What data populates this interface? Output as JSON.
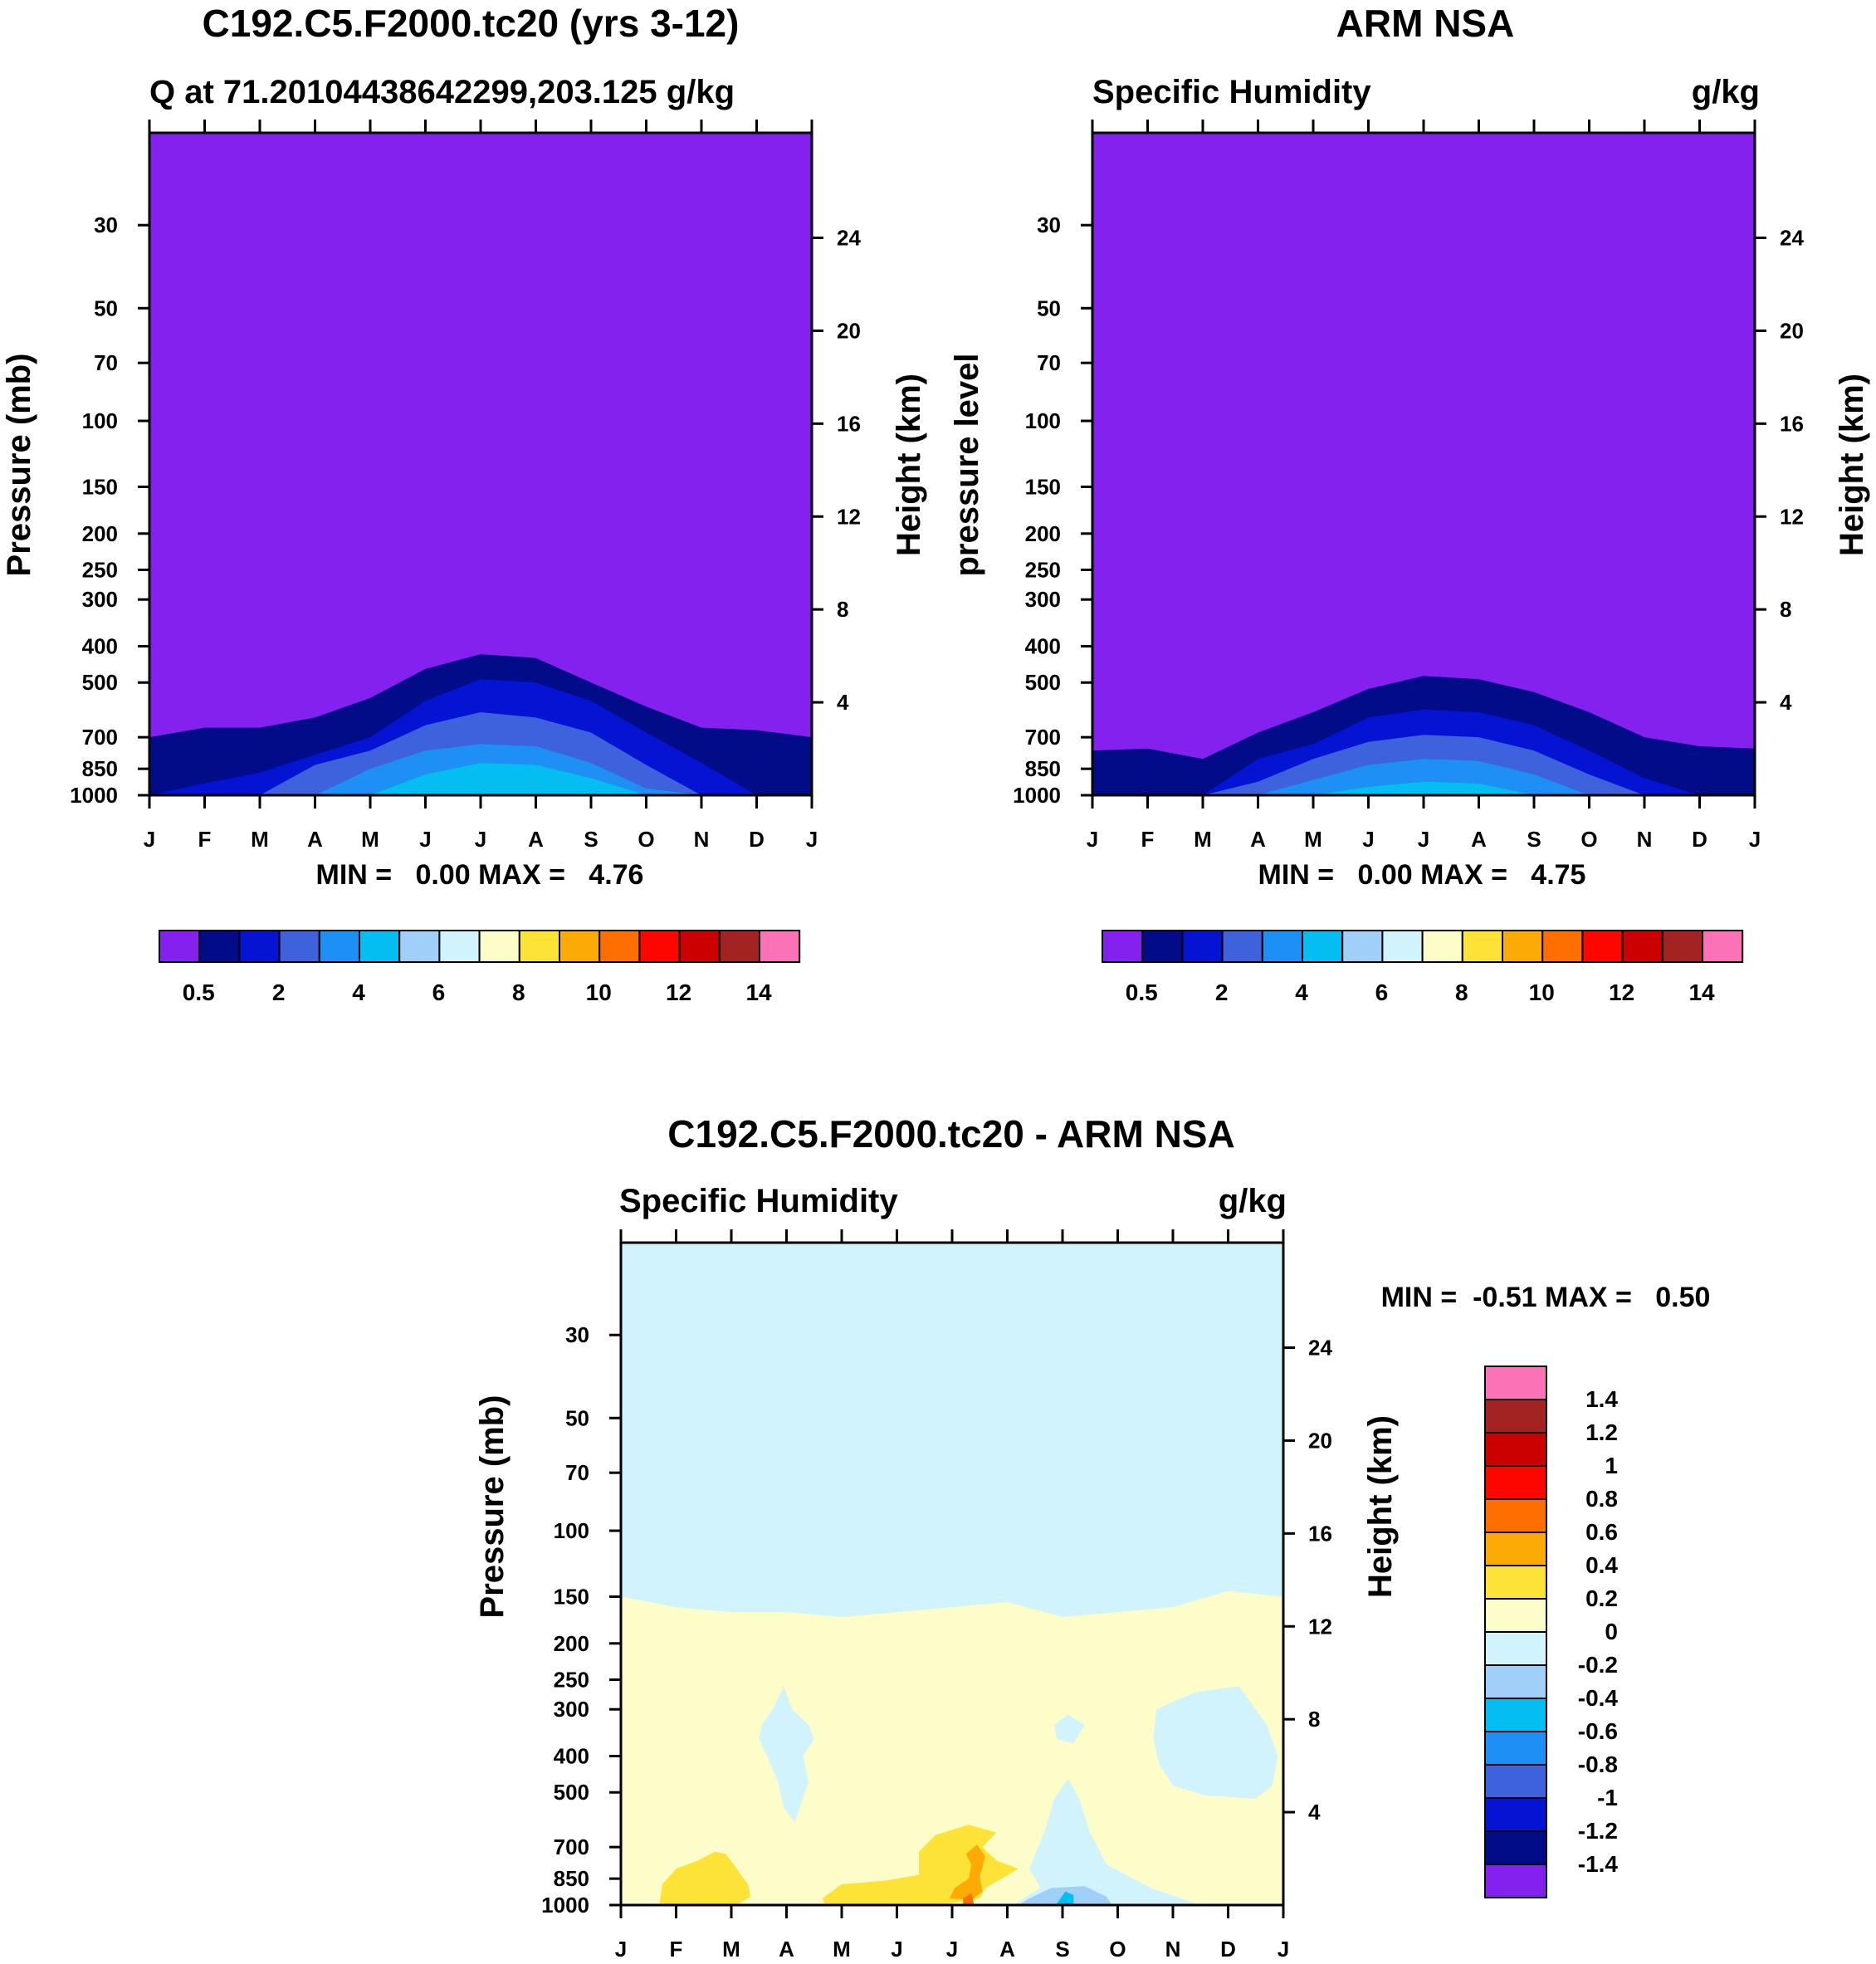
{
  "colors": {
    "absolute_levels": [
      "#8521ee",
      "#020b88",
      "#0414d2",
      "#3d62dc",
      "#1e8ff5",
      "#04bdf1",
      "#a0cffa",
      "#d1f3fd",
      "#fdfdc9",
      "#fde237",
      "#fcaa05",
      "#fe6e00",
      "#fd0600",
      "#cb0000",
      "#a32322",
      "#fb72b7"
    ],
    "difference_levels": [
      "#8521ee",
      "#020b88",
      "#0414d2",
      "#3d62dc",
      "#1e8ff5",
      "#04bdf1",
      "#a0cffa",
      "#d1f3fd",
      "#fdfdc9",
      "#fde237",
      "#fcaa05",
      "#fe6e00",
      "#fd0600",
      "#cb0000",
      "#a32322",
      "#fb72b7"
    ]
  },
  "chart_data": [
    {
      "id": "model",
      "type": "contour",
      "title": "C192.C5.F2000.tc20 (yrs 3-12)",
      "subtitle_left": "Q at 71.20104438642299,203.125 g/kg",
      "subtitle_right": "",
      "ylabel_left": "Pressure (mb)",
      "ylabel_right": "Height (km)",
      "stats": "MIN =   0.00 MAX =   4.76",
      "months": [
        "J",
        "F",
        "M",
        "A",
        "M",
        "J",
        "J",
        "A",
        "S",
        "O",
        "N",
        "D",
        "J"
      ],
      "pressure_ticks": [
        30,
        50,
        70,
        100,
        150,
        200,
        250,
        300,
        400,
        500,
        700,
        850,
        1000
      ],
      "height_ticks": [
        24,
        20,
        16,
        12,
        8,
        4
      ],
      "colorbar_labels": [
        "0.5",
        "2",
        "4",
        "6",
        "8",
        "10",
        "12",
        "14"
      ],
      "contour_top_mb": {
        "x": [
          0,
          1,
          2,
          3,
          4,
          5,
          6,
          7,
          8,
          9,
          10,
          11,
          12
        ],
        "0.5": [
          700,
          660,
          660,
          620,
          550,
          460,
          420,
          430,
          500,
          580,
          660,
          670,
          700
        ],
        "1": [
          1000,
          930,
          870,
          780,
          700,
          560,
          490,
          500,
          560,
          680,
          820,
          1000,
          1000
        ],
        "2": [
          1000,
          1000,
          1000,
          830,
          760,
          650,
          600,
          620,
          680,
          830,
          1000,
          1000,
          1000
        ],
        "3": [
          1000,
          1000,
          1000,
          1000,
          850,
          760,
          730,
          740,
          820,
          960,
          1000,
          1000,
          1000
        ],
        "4": [
          1000,
          1000,
          1000,
          1000,
          1000,
          880,
          820,
          830,
          900,
          1000,
          1000,
          1000,
          1000
        ]
      }
    },
    {
      "id": "obs",
      "type": "contour",
      "title": "ARM NSA",
      "subtitle_left": "Specific Humidity",
      "subtitle_right": "g/kg",
      "ylabel_left": "pressure level",
      "ylabel_right": "Height (km)",
      "stats": "MIN =   0.00 MAX =   4.75",
      "months": [
        "J",
        "F",
        "M",
        "A",
        "M",
        "J",
        "J",
        "A",
        "S",
        "O",
        "N",
        "D",
        "J"
      ],
      "pressure_ticks": [
        30,
        50,
        70,
        100,
        150,
        200,
        250,
        300,
        400,
        500,
        700,
        850,
        1000
      ],
      "height_ticks": [
        24,
        20,
        16,
        12,
        8,
        4
      ],
      "colorbar_labels": [
        "0.5",
        "2",
        "4",
        "6",
        "8",
        "10",
        "12",
        "14"
      ],
      "contour_top_mb": {
        "x": [
          0,
          1,
          2,
          3,
          4,
          5,
          6,
          7,
          8,
          9,
          10,
          11,
          12
        ],
        "0.5": [
          760,
          750,
          800,
          680,
          600,
          520,
          480,
          490,
          530,
          600,
          700,
          740,
          750
        ],
        "1": [
          1000,
          1000,
          1000,
          800,
          730,
          620,
          590,
          600,
          650,
          760,
          900,
          1000,
          1000
        ],
        "2": [
          1000,
          1000,
          1000,
          920,
          800,
          720,
          690,
          700,
          760,
          880,
          1000,
          1000,
          1000
        ],
        "3": [
          1000,
          1000,
          1000,
          1000,
          910,
          830,
          800,
          810,
          880,
          1000,
          1000,
          1000,
          1000
        ],
        "4": [
          1000,
          1000,
          1000,
          1000,
          1000,
          950,
          920,
          930,
          1000,
          1000,
          1000,
          1000,
          1000
        ]
      }
    },
    {
      "id": "diff",
      "type": "contour",
      "title": "C192.C5.F2000.tc20 - ARM NSA",
      "subtitle_left": "Specific Humidity",
      "subtitle_right": "g/kg",
      "ylabel_left": "Pressure (mb)",
      "ylabel_right": "Height (km)",
      "stats": "MIN =  -0.51 MAX =   0.50",
      "months": [
        "J",
        "F",
        "M",
        "A",
        "M",
        "J",
        "J",
        "A",
        "S",
        "O",
        "N",
        "D",
        "J"
      ],
      "pressure_ticks": [
        30,
        50,
        70,
        100,
        150,
        200,
        250,
        300,
        400,
        500,
        700,
        850,
        1000
      ],
      "height_ticks": [
        24,
        20,
        16,
        12,
        8,
        4
      ],
      "colorbar_labels": [
        "1.4",
        "1.2",
        "1",
        "0.8",
        "0.6",
        "0.4",
        "0.2",
        "0",
        "-0.2",
        "-0.4",
        "-0.6",
        "-0.8",
        "-1",
        "-1.2",
        "-1.4"
      ],
      "zero_line_mb": {
        "x": [
          0,
          1,
          2,
          3,
          4,
          5,
          6,
          7,
          8,
          9,
          10,
          11,
          12
        ],
        "p": [
          150,
          160,
          165,
          165,
          170,
          165,
          160,
          155,
          170,
          165,
          160,
          145,
          150
        ]
      }
    }
  ]
}
